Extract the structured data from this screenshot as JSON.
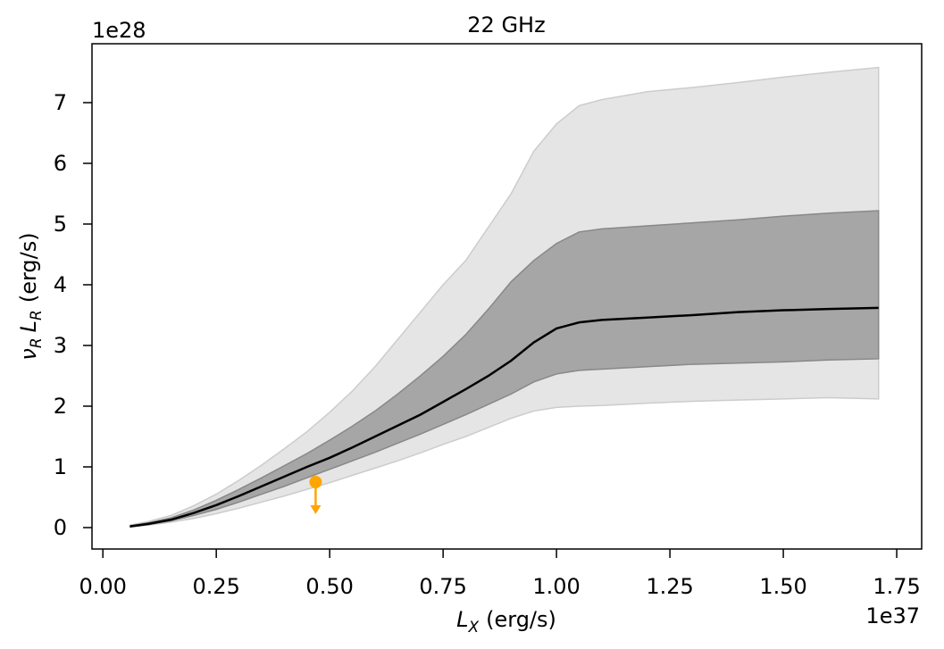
{
  "chart_data": {
    "type": "line",
    "title": "22 GHz",
    "xlabel": {
      "symbol": "L",
      "subscript": "X",
      "unit": "(erg/s)"
    },
    "ylabel": {
      "terms": [
        {
          "symbol": "ν",
          "subscript": "R"
        },
        {
          "symbol": "L",
          "subscript": "R"
        }
      ],
      "unit": "(erg/s)"
    },
    "x_offset_label": "1e37",
    "y_offset_label": "1e28",
    "xlim": [
      -0.024,
      1.805
    ],
    "ylim": [
      -0.353,
      7.97
    ],
    "xticks": [
      {
        "value": 0,
        "label": "0.00"
      },
      0.25,
      {
        "value": 0.5,
        "label": "0.50"
      },
      0.75,
      {
        "value": 1,
        "label": "1.00"
      },
      1.25,
      {
        "value": 1.5,
        "label": "1.50"
      },
      1.75
    ],
    "yticks": [
      0,
      1,
      2,
      3,
      4,
      5,
      6,
      7
    ],
    "x": [
      0.06,
      0.1,
      0.15,
      0.2,
      0.25,
      0.3,
      0.35,
      0.4,
      0.45,
      0.5,
      0.55,
      0.6,
      0.65,
      0.7,
      0.75,
      0.8,
      0.85,
      0.9,
      0.95,
      1.0,
      1.05,
      1.1,
      1.2,
      1.3,
      1.4,
      1.5,
      1.6,
      1.71
    ],
    "bands": [
      {
        "color": "#e5e5e5",
        "edge_color": "#cccccc",
        "lower": [
          0.01,
          0.04,
          0.09,
          0.15,
          0.23,
          0.32,
          0.42,
          0.52,
          0.63,
          0.74,
          0.86,
          0.98,
          1.1,
          1.23,
          1.37,
          1.5,
          1.65,
          1.8,
          1.92,
          1.98,
          2.0,
          2.01,
          2.05,
          2.08,
          2.1,
          2.12,
          2.14,
          2.12
        ],
        "upper": [
          0.04,
          0.1,
          0.2,
          0.36,
          0.55,
          0.78,
          1.03,
          1.3,
          1.58,
          1.9,
          2.25,
          2.65,
          3.1,
          3.55,
          4.0,
          4.4,
          4.95,
          5.5,
          6.2,
          6.65,
          6.95,
          7.05,
          7.18,
          7.25,
          7.33,
          7.42,
          7.5,
          7.58
        ]
      },
      {
        "color": "#a6a6a6",
        "edge_color": "#888888",
        "lower": [
          0.01,
          0.05,
          0.11,
          0.2,
          0.3,
          0.42,
          0.55,
          0.68,
          0.82,
          0.96,
          1.1,
          1.24,
          1.39,
          1.54,
          1.7,
          1.86,
          2.03,
          2.2,
          2.4,
          2.53,
          2.59,
          2.61,
          2.65,
          2.69,
          2.71,
          2.73,
          2.76,
          2.78
        ],
        "upper": [
          0.03,
          0.08,
          0.16,
          0.29,
          0.45,
          0.63,
          0.82,
          1.02,
          1.22,
          1.44,
          1.67,
          1.92,
          2.2,
          2.5,
          2.82,
          3.18,
          3.6,
          4.05,
          4.4,
          4.68,
          4.87,
          4.92,
          4.97,
          5.02,
          5.07,
          5.13,
          5.18,
          5.22
        ]
      }
    ],
    "series": [
      {
        "color": "#000000",
        "values": [
          0.02,
          0.06,
          0.13,
          0.24,
          0.37,
          0.52,
          0.68,
          0.84,
          1.0,
          1.15,
          1.32,
          1.5,
          1.68,
          1.86,
          2.07,
          2.28,
          2.5,
          2.75,
          3.05,
          3.28,
          3.38,
          3.42,
          3.46,
          3.5,
          3.55,
          3.58,
          3.6,
          3.62
        ]
      }
    ],
    "points": [
      {
        "color": "#ffa500",
        "x": 0.469,
        "y": 0.75,
        "upper_limit": true
      }
    ]
  }
}
